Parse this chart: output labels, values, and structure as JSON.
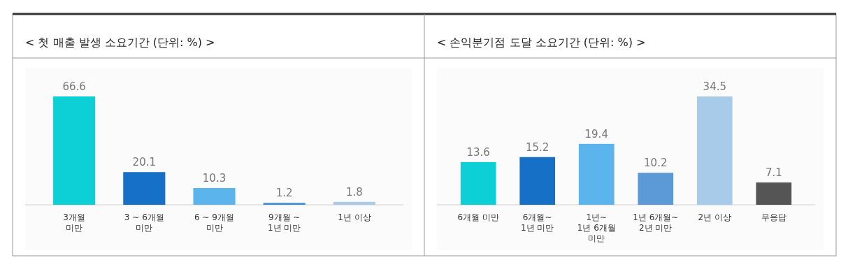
{
  "chart_data": [
    {
      "type": "bar",
      "title": "< 첫 매출 발생 소요기간 (단위: %) >",
      "categories": [
        "3개월\n미만",
        "3 ~ 6개월\n미만",
        "6 ~ 9개월\n미만",
        "9개월 ~\n1년 미만",
        "1년 이상"
      ],
      "values": [
        66.6,
        20.1,
        10.3,
        1.2,
        1.8
      ],
      "colors": [
        "#0dcfd6",
        "#1570c6",
        "#5cb4ec",
        "#4a8fd6",
        "#a9cbe8"
      ],
      "data_labels": true
    },
    {
      "type": "bar",
      "title": "< 손익분기점 도달 소요기간 (단위: %) >",
      "categories": [
        "6개월 미만",
        "6개월~\n1년 미만",
        "1년~\n1년 6개월\n미만",
        "1년 6개월~\n2년 미만",
        "2년 이상",
        "무응답"
      ],
      "values": [
        13.6,
        15.2,
        19.4,
        10.2,
        34.5,
        7.1
      ],
      "colors": [
        "#0dcfd6",
        "#1570c6",
        "#5cb4ec",
        "#5b9ad6",
        "#a8cbe9",
        "#555555"
      ],
      "data_labels": true
    }
  ]
}
